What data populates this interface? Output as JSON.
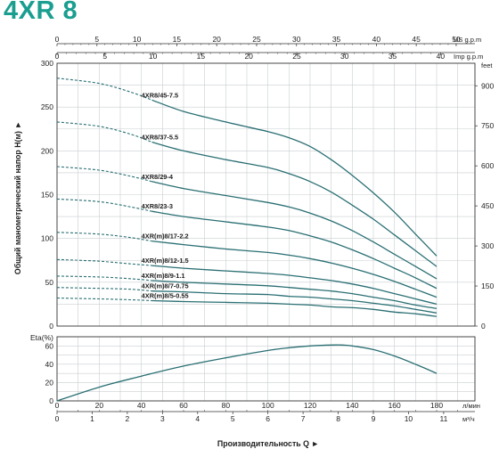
{
  "title": "4XR 8",
  "colors": {
    "title": "#1a9e90",
    "curve": "#2a6f73",
    "grid": "#c9ced0",
    "axis": "#333333"
  },
  "chart_data": {
    "type": "line",
    "head_panel": {
      "ylabel": "Общий манометрический напор Н(м) ►",
      "yunit_left": "",
      "yunit_right": "feet",
      "ylim_m": [
        0,
        300
      ],
      "yticks_m": [
        0,
        50,
        100,
        150,
        200,
        250,
        300
      ],
      "yticks_feet": [
        0,
        150,
        300,
        450,
        600,
        750,
        900
      ],
      "xlim_lpm": [
        0,
        180
      ],
      "series": [
        {
          "name": "4XR8/45-7.5",
          "x": [
            0,
            20,
            35,
            45,
            60,
            80,
            100,
            110,
            120,
            130,
            140,
            150,
            160,
            170,
            180
          ],
          "y": [
            283,
            277,
            267,
            258,
            245,
            233,
            222,
            215,
            205,
            190,
            172,
            152,
            130,
            105,
            80
          ]
        },
        {
          "name": "4XR8/37-5.5",
          "x": [
            0,
            20,
            35,
            45,
            60,
            80,
            100,
            110,
            120,
            130,
            140,
            150,
            160,
            170,
            180
          ],
          "y": [
            233,
            228,
            219,
            210,
            200,
            190,
            181,
            174,
            165,
            153,
            138,
            122,
            104,
            86,
            68
          ]
        },
        {
          "name": "4XR8/29-4",
          "x": [
            0,
            20,
            35,
            45,
            60,
            80,
            100,
            110,
            120,
            130,
            140,
            150,
            160,
            170,
            180
          ],
          "y": [
            182,
            178,
            171,
            165,
            157,
            149,
            141,
            136,
            129,
            120,
            109,
            96,
            82,
            68,
            54
          ]
        },
        {
          "name": "4XR8/23-3",
          "x": [
            0,
            20,
            35,
            45,
            60,
            80,
            100,
            110,
            120,
            130,
            140,
            150,
            160,
            170,
            180
          ],
          "y": [
            145,
            142,
            136,
            131,
            125,
            119,
            113,
            109,
            103,
            96,
            87,
            77,
            66,
            55,
            43
          ]
        },
        {
          "name": "4XR(m)8/17-2.2",
          "x": [
            0,
            20,
            35,
            45,
            60,
            80,
            100,
            110,
            120,
            130,
            140,
            150,
            160,
            170,
            180
          ],
          "y": [
            107,
            105,
            101,
            97,
            93,
            88,
            84,
            81,
            77,
            72,
            66,
            59,
            51,
            42,
            33
          ]
        },
        {
          "name": "4XR(m)8/12-1.5",
          "x": [
            0,
            20,
            35,
            45,
            60,
            80,
            100,
            110,
            120,
            130,
            140,
            150,
            160,
            170,
            180
          ],
          "y": [
            76,
            74,
            71,
            69,
            66,
            63,
            60,
            58,
            55,
            52,
            48,
            43,
            37,
            31,
            25
          ]
        },
        {
          "name": "4XR(m)8/9-1.1",
          "x": [
            0,
            20,
            35,
            45,
            60,
            80,
            100,
            110,
            120,
            130,
            140,
            150,
            160,
            170,
            180
          ],
          "y": [
            57,
            56,
            54,
            52,
            50,
            48,
            46,
            44,
            42,
            40,
            37,
            33,
            29,
            24,
            20
          ]
        },
        {
          "name": "4XR(m)8/7-0.75",
          "x": [
            0,
            20,
            35,
            45,
            60,
            80,
            100,
            110,
            120,
            130,
            140,
            150,
            160,
            170,
            180
          ],
          "y": [
            44,
            43,
            42,
            40,
            39,
            37,
            36,
            34,
            33,
            31,
            29,
            26,
            23,
            19,
            15
          ]
        },
        {
          "name": "4XR(m)8/5-0.55",
          "x": [
            0,
            20,
            35,
            45,
            60,
            80,
            100,
            110,
            120,
            130,
            140,
            150,
            160,
            170,
            180
          ],
          "y": [
            32,
            31,
            30,
            29,
            28,
            27,
            26,
            25,
            24,
            22,
            21,
            19,
            16,
            14,
            11
          ]
        }
      ]
    },
    "eta_panel": {
      "ylabel": "Eta(%)",
      "ylim": [
        0,
        70
      ],
      "yticks": [
        0,
        20,
        40,
        60
      ],
      "series": [
        {
          "name": "",
          "x": [
            0,
            20,
            40,
            60,
            80,
            100,
            110,
            120,
            130,
            135,
            140,
            150,
            160,
            170,
            180
          ],
          "y": [
            0,
            15,
            27,
            38,
            47,
            55,
            58,
            60,
            61,
            61,
            60,
            56,
            49,
            40,
            30
          ]
        }
      ]
    },
    "axes": {
      "us_gpm": {
        "label": "US g.p.m",
        "ticks": [
          0,
          5,
          10,
          15,
          20,
          25,
          30,
          35,
          40,
          45,
          50
        ]
      },
      "imp_gpm": {
        "label": "Imp g.p.m",
        "ticks": [
          0,
          5,
          10,
          15,
          20,
          25,
          30,
          35,
          40
        ]
      },
      "lpm": {
        "label": "л/мин",
        "ticks": [
          0,
          20,
          40,
          60,
          80,
          100,
          120,
          140,
          160,
          180
        ]
      },
      "m3h": {
        "label": "м³/ч",
        "ticks": [
          0,
          1,
          2,
          3,
          4,
          5,
          6,
          7,
          8,
          9,
          10,
          11
        ]
      },
      "xlabel": "Производительность Q ►"
    }
  }
}
